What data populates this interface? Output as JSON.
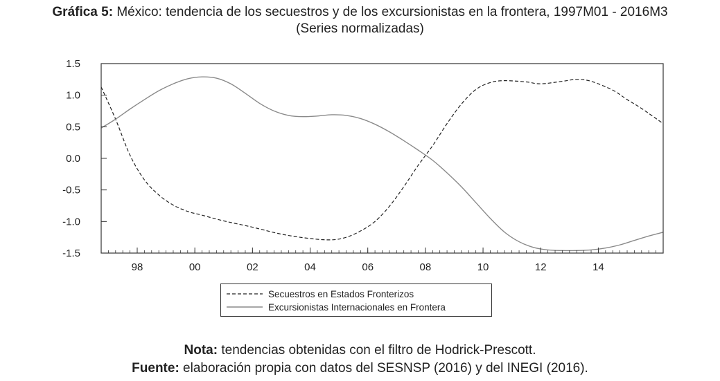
{
  "header": {
    "title_lead": "Gráfica 5:",
    "title_rest": " México: tendencia de los secuestros y de los excursionistas en la frontera, 1997M01 - 2016M3",
    "subtitle": "(Series normalizadas)"
  },
  "footer": {
    "note_lead": "Nota:",
    "note_rest": " tendencias obtenidas con el filtro de Hodrick-Prescott.",
    "source_lead": "Fuente:",
    "source_rest": " elaboración propia con datos del SESNSP (2016) y del INEGI (2016)."
  },
  "chart_data": {
    "type": "line",
    "title": "México: tendencia de los secuestros y de los excursionistas en la frontera, 1997M01 - 2016M3",
    "subtitle": "(Series normalizadas)",
    "xlim": [
      1996.75,
      2016.25
    ],
    "ylim": [
      -1.5,
      1.5
    ],
    "x_ticks": [
      1998,
      2000,
      2002,
      2004,
      2006,
      2008,
      2010,
      2012,
      2014
    ],
    "x_tick_labels": [
      "98",
      "00",
      "02",
      "04",
      "06",
      "08",
      "10",
      "12",
      "14"
    ],
    "y_ticks": [
      1.5,
      1.0,
      0.5,
      0.0,
      -0.5,
      -1.0,
      -1.5
    ],
    "y_tick_labels": [
      "1.5",
      "1.0",
      "0.5",
      "0.0",
      "-0.5",
      "-1.0",
      "-1.5"
    ],
    "grid": false,
    "legend_position": "bottom-center",
    "series": [
      {
        "name": "Secuestros en Estados Fronterizos",
        "line_style": "dashed",
        "color": "#222222",
        "x": [
          1996.75,
          1997.25,
          1997.75,
          1998.25,
          1998.75,
          1999.25,
          1999.75,
          2000.25,
          2001.0,
          2002.0,
          2003.0,
          2004.0,
          2004.75,
          2005.25,
          2005.75,
          2006.25,
          2006.75,
          2007.25,
          2007.75,
          2008.25,
          2008.75,
          2009.25,
          2009.75,
          2010.25,
          2010.75,
          2011.5,
          2012.0,
          2012.75,
          2013.25,
          2013.75,
          2014.5,
          2015.0,
          2015.5,
          2016.25
        ],
        "y": [
          1.13,
          0.62,
          0.05,
          -0.34,
          -0.58,
          -0.74,
          -0.84,
          -0.9,
          -0.99,
          -1.09,
          -1.2,
          -1.27,
          -1.29,
          -1.25,
          -1.15,
          -1.0,
          -0.76,
          -0.45,
          -0.11,
          0.2,
          0.55,
          0.86,
          1.09,
          1.2,
          1.23,
          1.21,
          1.18,
          1.22,
          1.25,
          1.22,
          1.08,
          0.93,
          0.79,
          0.55
        ]
      },
      {
        "name": "Excursionistas Internacionales en Frontera",
        "line_style": "solid",
        "color": "#8a8a8a",
        "x": [
          1996.75,
          1997.25,
          1997.75,
          1998.25,
          1998.75,
          1999.25,
          1999.75,
          2000.25,
          2000.75,
          2001.25,
          2001.75,
          2002.25,
          2002.75,
          2003.25,
          2003.75,
          2004.25,
          2004.75,
          2005.25,
          2005.75,
          2006.25,
          2006.75,
          2007.25,
          2007.75,
          2008.25,
          2008.75,
          2009.25,
          2009.75,
          2010.25,
          2010.75,
          2011.25,
          2011.75,
          2012.25,
          2012.75,
          2013.25,
          2013.75,
          2014.25,
          2014.75,
          2015.25,
          2015.75,
          2016.25
        ],
        "y": [
          0.48,
          0.62,
          0.78,
          0.93,
          1.07,
          1.18,
          1.26,
          1.29,
          1.27,
          1.18,
          1.03,
          0.87,
          0.75,
          0.68,
          0.66,
          0.67,
          0.69,
          0.68,
          0.63,
          0.54,
          0.42,
          0.28,
          0.13,
          -0.03,
          -0.23,
          -0.45,
          -0.7,
          -0.95,
          -1.17,
          -1.32,
          -1.41,
          -1.45,
          -1.46,
          -1.46,
          -1.45,
          -1.42,
          -1.37,
          -1.3,
          -1.23,
          -1.17
        ]
      }
    ]
  }
}
